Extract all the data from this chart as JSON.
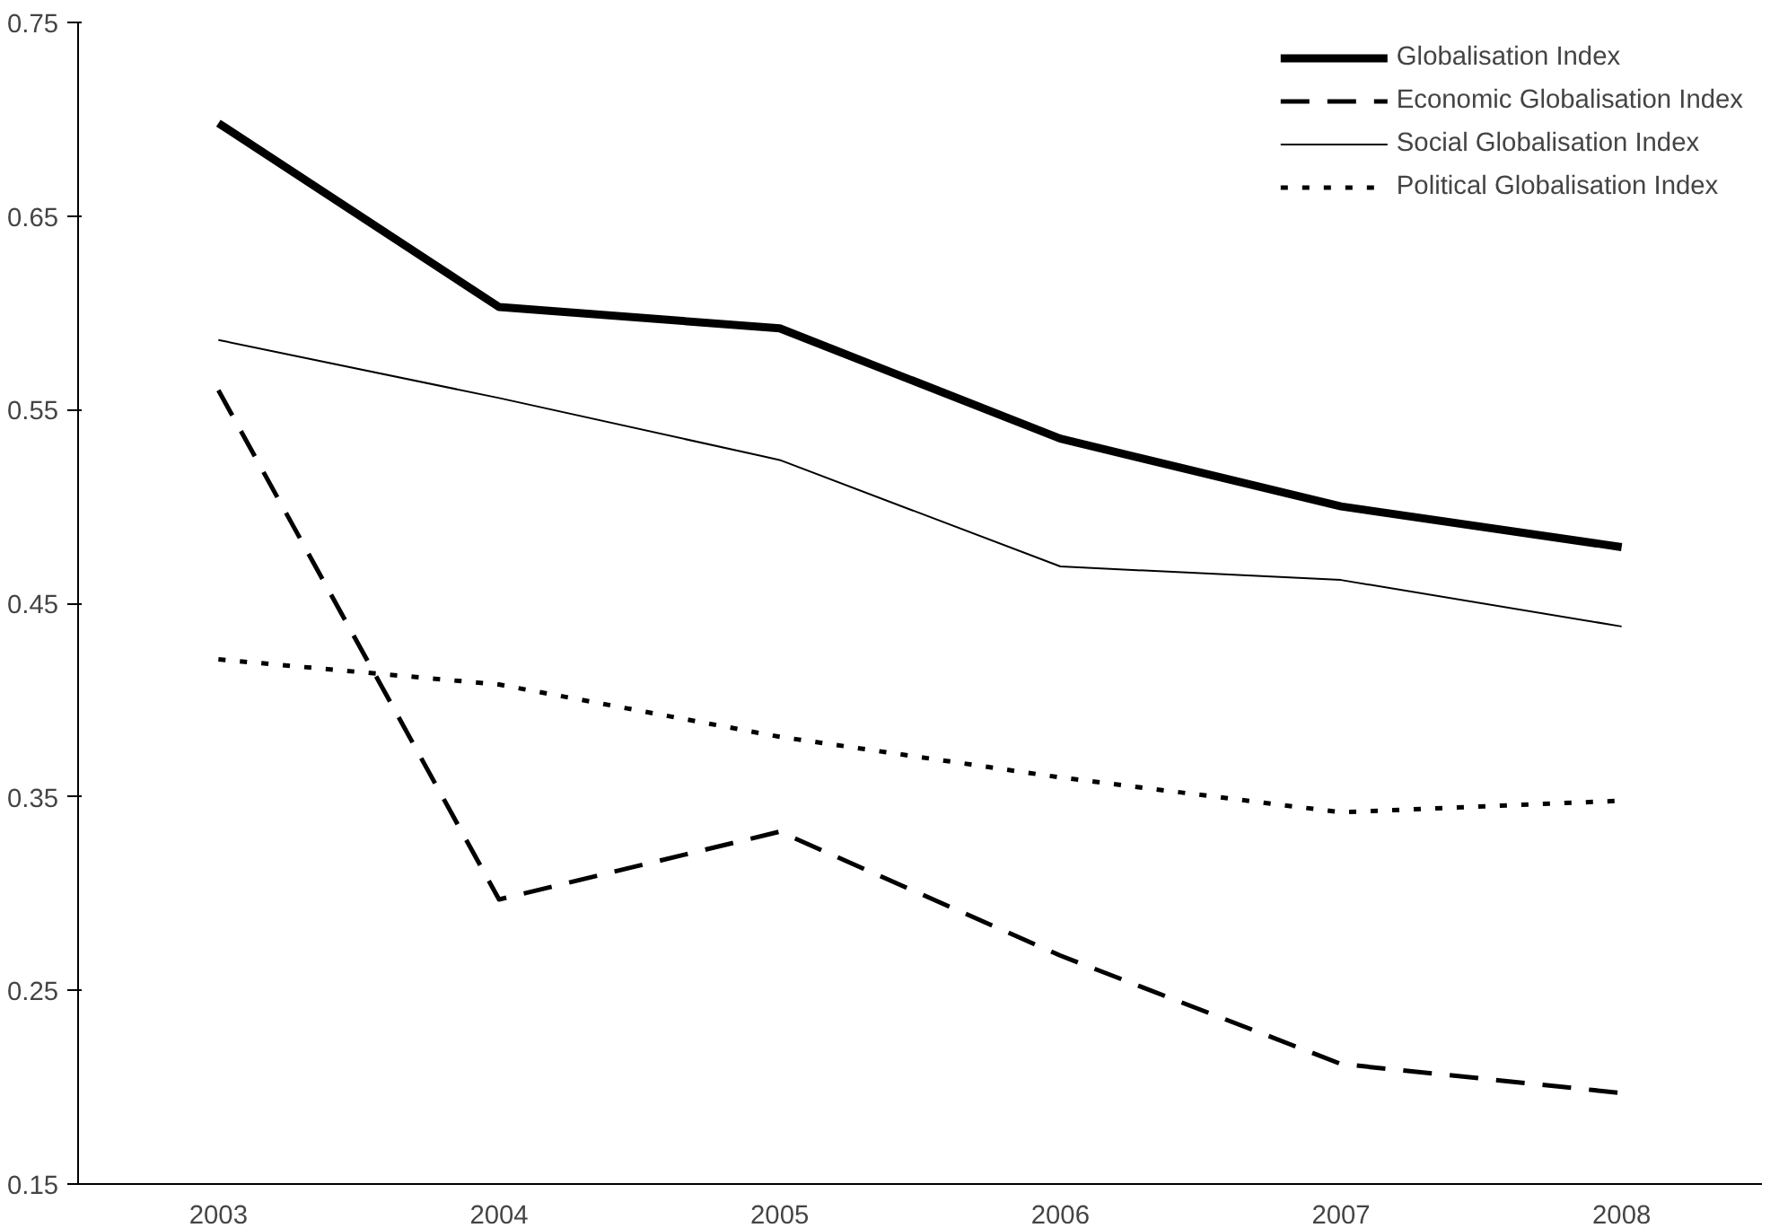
{
  "chart_data": {
    "type": "line",
    "categories": [
      "2003",
      "2004",
      "2005",
      "2006",
      "2007",
      "2008"
    ],
    "ylim": [
      0.15,
      0.75
    ],
    "yticks": [
      {
        "value": 0.15,
        "label": "0.15"
      },
      {
        "value": 0.25,
        "label": "0.25"
      },
      {
        "value": 0.35,
        "label": "0.35"
      },
      {
        "value": 0.45,
        "label": "0.45"
      },
      {
        "value": 0.55,
        "label": "0.55"
      },
      {
        "value": 0.65,
        "label": "0.65"
      },
      {
        "value": 0.75,
        "label": "0.75"
      }
    ],
    "grid": false,
    "legend": "top right",
    "marker": "none",
    "series": [
      {
        "name": "Globalisation Index",
        "color": "#000000",
        "line_style": "solid",
        "values": [
          0.698,
          0.603,
          0.592,
          0.535,
          0.5,
          0.479
        ]
      },
      {
        "name": "Economic Globalisation Index",
        "color": "#000000",
        "line_style": "dashed",
        "values": [
          0.56,
          0.297,
          0.332,
          0.268,
          0.212,
          0.197
        ]
      },
      {
        "name": "Social Globalisation Index",
        "color": "#000000",
        "line_style": "solid",
        "values": [
          0.586,
          0.556,
          0.524,
          0.469,
          0.462,
          0.438
        ]
      },
      {
        "name": "Political Globalisation Index",
        "color": "#000000",
        "line_style": "dotted",
        "values": [
          0.421,
          0.408,
          0.381,
          0.36,
          0.342,
          0.348
        ]
      }
    ]
  }
}
